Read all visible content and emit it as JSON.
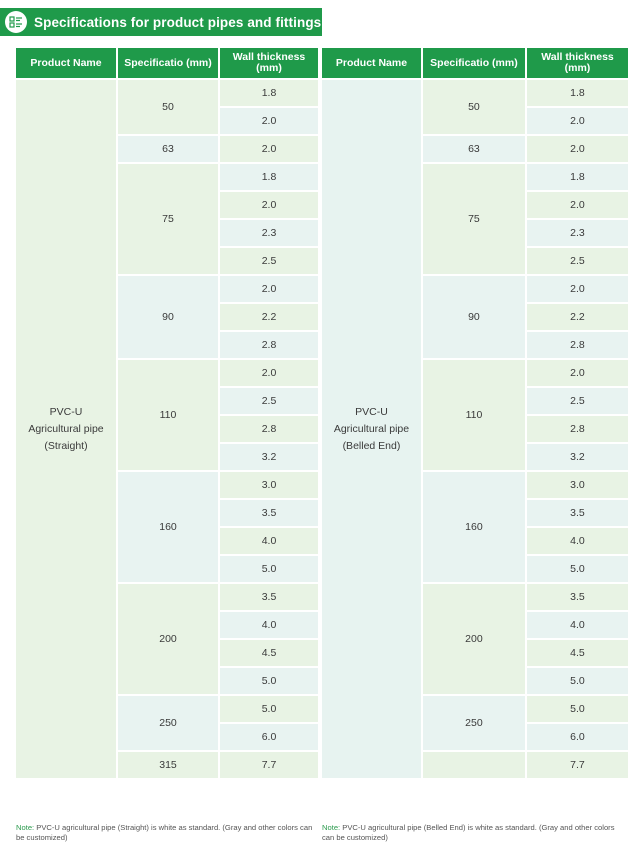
{
  "header": {
    "title": "Specifications for product pipes and fittings",
    "icon": "list-icon"
  },
  "colors": {
    "header_green": "#1f9a4a",
    "cell_green": "#e8f3e4",
    "cell_blue": "#e8f3f1"
  },
  "columns": [
    "Product Name",
    "Specificatio (mm)",
    "Wall thickness (mm)"
  ],
  "tables": [
    {
      "product": {
        "line1": "PVC-U",
        "line2": "Agricultural pipe",
        "line3": "(Straight)"
      },
      "groups": [
        {
          "spec": "50",
          "walls": [
            "1.8",
            "2.0"
          ]
        },
        {
          "spec": "63",
          "walls": [
            "2.0"
          ]
        },
        {
          "spec": "75",
          "walls": [
            "1.8",
            "2.0",
            "2.3",
            "2.5"
          ]
        },
        {
          "spec": "90",
          "walls": [
            "2.0",
            "2.2",
            "2.8"
          ]
        },
        {
          "spec": "110",
          "walls": [
            "2.0",
            "2.5",
            "2.8",
            "3.2"
          ]
        },
        {
          "spec": "160",
          "walls": [
            "3.0",
            "3.5",
            "4.0",
            "5.0"
          ]
        },
        {
          "spec": "200",
          "walls": [
            "3.5",
            "4.0",
            "4.5",
            "5.0"
          ]
        },
        {
          "spec": "250",
          "walls": [
            "5.0",
            "6.0"
          ]
        },
        {
          "spec": "315",
          "walls": [
            "7.7"
          ]
        }
      ],
      "note": {
        "label": "Note:",
        "text": " PVC-U agricultural pipe (Straight) is white as standard. (Gray and other colors can be customized)"
      }
    },
    {
      "product": {
        "line1": "PVC-U",
        "line2": "Agricultural pipe",
        "line3": "(Belled End)"
      },
      "groups": [
        {
          "spec": "50",
          "walls": [
            "1.8",
            "2.0"
          ]
        },
        {
          "spec": "63",
          "walls": [
            "2.0"
          ]
        },
        {
          "spec": "75",
          "walls": [
            "1.8",
            "2.0",
            "2.3",
            "2.5"
          ]
        },
        {
          "spec": "90",
          "walls": [
            "2.0",
            "2.2",
            "2.8"
          ]
        },
        {
          "spec": "110",
          "walls": [
            "2.0",
            "2.5",
            "2.8",
            "3.2"
          ]
        },
        {
          "spec": "160",
          "walls": [
            "3.0",
            "3.5",
            "4.0",
            "5.0"
          ]
        },
        {
          "spec": "200",
          "walls": [
            "3.5",
            "4.0",
            "4.5",
            "5.0"
          ]
        },
        {
          "spec": "250",
          "walls": [
            "5.0",
            "6.0"
          ]
        },
        {
          "spec": "",
          "walls": [
            "7.7"
          ]
        }
      ],
      "note": {
        "label": "Note:",
        "text": " PVC-U agricultural pipe (Belled End) is white as standard. (Gray and other colors can be customized)"
      }
    }
  ]
}
